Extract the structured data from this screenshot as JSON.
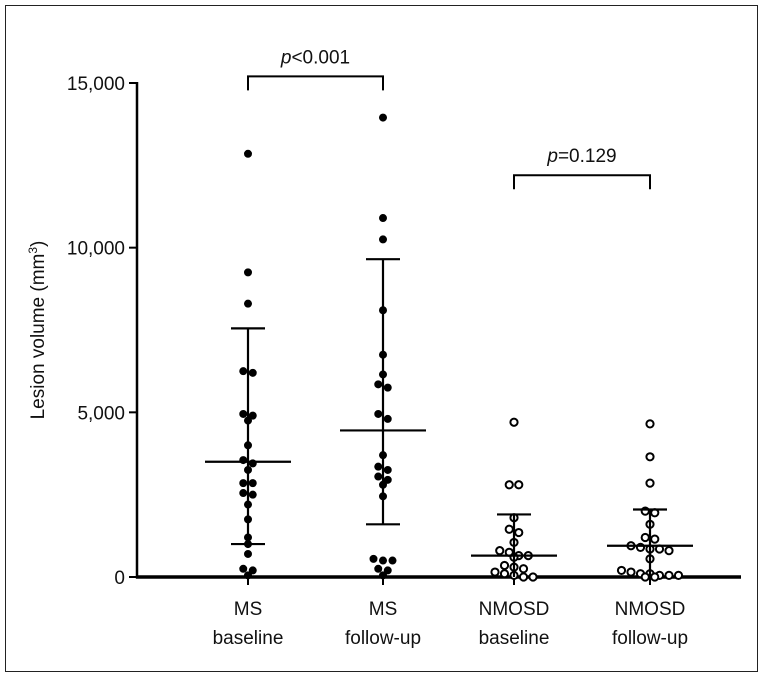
{
  "chart_data": {
    "type": "scatter",
    "subtype": "dot-plot with mean and SD bars",
    "ylabel": "Lesion volume (mm",
    "ylabel_sup": "3",
    "ylabel_close": ")",
    "ylim": [
      0,
      15000
    ],
    "yticks": [
      {
        "value": 0,
        "label": "0"
      },
      {
        "value": 5000,
        "label": "5,000"
      },
      {
        "value": 10000,
        "label": "10,000"
      },
      {
        "value": 15000,
        "label": "15,000"
      }
    ],
    "groups": [
      {
        "line1": "MS",
        "line2": "baseline",
        "filled": true,
        "mean": 3500,
        "sd_low": 1000,
        "sd_high": 7550,
        "points": [
          12850,
          9250,
          8300,
          6250,
          6200,
          4950,
          4900,
          4750,
          4000,
          3550,
          3450,
          3250,
          2850,
          2850,
          2550,
          2500,
          2200,
          1750,
          1200,
          1000,
          700,
          250,
          200,
          50
        ]
      },
      {
        "line1": "MS",
        "line2": "follow-up",
        "filled": true,
        "mean": 4450,
        "sd_low": 1600,
        "sd_high": 9650,
        "points": [
          13950,
          10900,
          10250,
          8100,
          6750,
          6150,
          5850,
          5750,
          4950,
          4800,
          3700,
          3350,
          3250,
          3050,
          2950,
          2800,
          2450,
          550,
          500,
          500,
          250,
          200,
          50
        ]
      },
      {
        "line1": "NMOSD",
        "line2": "baseline",
        "filled": false,
        "mean": 650,
        "sd_low": 0,
        "sd_high": 1900,
        "points": [
          4700,
          2800,
          2800,
          1800,
          1450,
          1350,
          1050,
          800,
          750,
          650,
          650,
          600,
          350,
          300,
          250,
          150,
          100,
          50,
          0,
          0
        ]
      },
      {
        "line1": "NMOSD",
        "line2": "follow-up",
        "filled": false,
        "mean": 950,
        "sd_low": 0,
        "sd_high": 2050,
        "points": [
          4650,
          3650,
          2850,
          2000,
          1950,
          1600,
          1200,
          1150,
          950,
          900,
          850,
          850,
          800,
          550,
          200,
          150,
          100,
          100,
          50,
          50,
          50,
          0,
          0
        ]
      }
    ],
    "annotations": [
      {
        "italic": "p",
        "text": "<0.001",
        "from_group": 0,
        "to_group": 1,
        "level": 15200
      },
      {
        "italic": "p",
        "text": "=0.129",
        "from_group": 2,
        "to_group": 3,
        "level": 12200
      }
    ]
  }
}
